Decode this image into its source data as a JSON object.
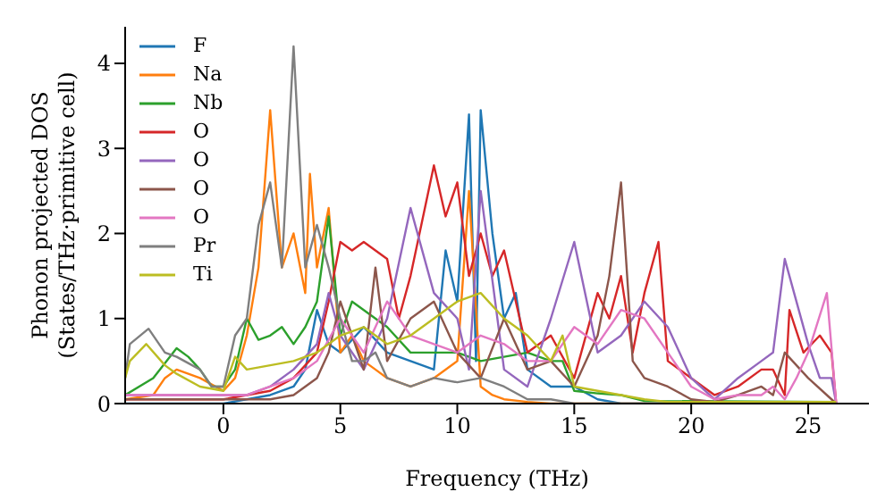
{
  "chart_data": {
    "type": "line",
    "xlabel": "Frequency (THz)",
    "ylabel": "Phonon projected DOS\n(States/THz·primitive cell)",
    "xlim": [
      -4.2,
      27.6
    ],
    "ylim": [
      0,
      4.43
    ],
    "xticks": [
      0,
      5,
      10,
      15,
      20,
      25
    ],
    "yticks": [
      0,
      1,
      2,
      3,
      4
    ],
    "grid": false,
    "legend": "top left",
    "marker": "none",
    "line_style": "solid",
    "series": [
      {
        "name": "F",
        "color": "#1f77b4",
        "x": [
          -4.2,
          0,
          2,
          3,
          3.5,
          4,
          4.5,
          5,
          6,
          7,
          8,
          9,
          9.5,
          10,
          10.5,
          10.8,
          11,
          11.5,
          12,
          12.5,
          13,
          14,
          15,
          16,
          17,
          26.2
        ],
        "values": [
          0,
          0,
          0.1,
          0.2,
          0.4,
          1.1,
          0.7,
          0.6,
          0.9,
          0.6,
          0.5,
          0.4,
          1.8,
          1.2,
          3.4,
          0.5,
          3.45,
          2.0,
          1.0,
          1.3,
          0.4,
          0.2,
          0.2,
          0.05,
          0,
          0
        ]
      },
      {
        "name": "Na",
        "color": "#ff7f0e",
        "x": [
          -4.2,
          -3,
          -2.5,
          -2,
          -1,
          0,
          0.5,
          1,
          1.5,
          2,
          2.5,
          3,
          3.5,
          3.7,
          4,
          4.5,
          5,
          5.5,
          6,
          6.5,
          7,
          8,
          9,
          10,
          10.5,
          11,
          11.5,
          12,
          13,
          14,
          26.2
        ],
        "values": [
          0.05,
          0.1,
          0.3,
          0.4,
          0.3,
          0.15,
          0.3,
          0.8,
          1.6,
          3.45,
          1.6,
          2.0,
          1.3,
          2.7,
          1.6,
          2.3,
          0.6,
          0.8,
          0.5,
          0.4,
          0.3,
          0.2,
          0.3,
          0.5,
          2.5,
          0.2,
          0.1,
          0.05,
          0.02,
          0,
          0
        ]
      },
      {
        "name": "Nb",
        "color": "#2ca02c",
        "x": [
          -4.2,
          -3,
          -2,
          -1.5,
          -1,
          -0.5,
          0,
          0.5,
          1,
          1.5,
          2,
          2.5,
          3,
          3.5,
          4,
          4.5,
          5,
          5.5,
          6,
          7,
          8,
          9,
          10,
          11,
          12,
          13,
          14,
          14.5,
          15,
          16,
          17,
          18,
          26.2
        ],
        "values": [
          0.1,
          0.3,
          0.65,
          0.55,
          0.4,
          0.2,
          0.2,
          0.4,
          1.0,
          0.75,
          0.8,
          0.9,
          0.7,
          0.9,
          1.2,
          2.2,
          0.8,
          1.2,
          1.1,
          0.9,
          0.6,
          0.6,
          0.6,
          0.5,
          0.55,
          0.6,
          0.5,
          0.5,
          0.15,
          0.12,
          0.1,
          0.03,
          0.02
        ]
      },
      {
        "name": "O",
        "color": "#d62728",
        "x": [
          -4.2,
          0,
          1,
          2,
          3,
          4,
          4.5,
          5,
          5.5,
          6,
          7,
          7.5,
          8,
          9,
          9.5,
          10,
          10.5,
          11,
          11.5,
          12,
          13,
          14,
          15,
          16,
          16.5,
          17,
          17.5,
          18,
          18.6,
          19,
          20,
          21,
          22,
          23,
          23.5,
          24,
          24.2,
          24.8,
          25.5,
          26,
          26.2
        ],
        "values": [
          0.05,
          0.05,
          0.1,
          0.15,
          0.3,
          0.6,
          1.2,
          1.9,
          1.8,
          1.9,
          1.7,
          1.0,
          1.5,
          2.8,
          2.2,
          2.6,
          1.5,
          2.0,
          1.5,
          1.8,
          0.6,
          0.8,
          0.3,
          1.3,
          1.0,
          1.5,
          0.6,
          1.3,
          1.9,
          0.5,
          0.3,
          0.1,
          0.2,
          0.4,
          0.4,
          0.1,
          1.1,
          0.6,
          0.8,
          0.6,
          0
        ]
      },
      {
        "name": "O",
        "color": "#9467bd",
        "x": [
          -4.2,
          1,
          2,
          3,
          4,
          4.5,
          5,
          6,
          7,
          8,
          9,
          10,
          10.5,
          11,
          12,
          13,
          14,
          15,
          16,
          17,
          18,
          19,
          20,
          21,
          22,
          23,
          23.5,
          24,
          25,
          25.5,
          26,
          26.2
        ],
        "values": [
          0.1,
          0.1,
          0.2,
          0.4,
          0.7,
          1.3,
          0.8,
          0.4,
          1.0,
          2.3,
          1.3,
          1.0,
          0.4,
          2.5,
          0.4,
          0.2,
          1.0,
          1.9,
          0.6,
          0.8,
          1.2,
          0.9,
          0.3,
          0.05,
          0.3,
          0.5,
          0.6,
          1.7,
          0.7,
          0.3,
          0.3,
          0
        ]
      },
      {
        "name": "O",
        "color": "#8c564b",
        "x": [
          -4.2,
          2,
          3,
          4,
          4.5,
          5,
          6,
          6.5,
          7,
          8,
          9,
          10,
          11,
          12,
          13,
          14,
          15,
          16,
          16.5,
          17,
          17.5,
          18,
          19,
          20,
          21,
          22,
          23,
          23.5,
          24,
          25,
          26,
          26.2
        ],
        "values": [
          0.05,
          0.05,
          0.1,
          0.3,
          0.6,
          1.2,
          0.4,
          1.6,
          0.5,
          1.0,
          1.2,
          0.6,
          0.3,
          1.0,
          0.4,
          0.5,
          0.2,
          0.8,
          1.5,
          2.6,
          0.5,
          0.3,
          0.2,
          0.05,
          0.02,
          0.1,
          0.2,
          0.1,
          0.6,
          0.3,
          0.05,
          0
        ]
      },
      {
        "name": "O",
        "color": "#e377c2",
        "x": [
          -4.2,
          1,
          2,
          3,
          4,
          5,
          6,
          7,
          8,
          9,
          10,
          11,
          12,
          13,
          14,
          15,
          16,
          17,
          18,
          19,
          20,
          21,
          22,
          23,
          23.5,
          24,
          24.5,
          25,
          25.8,
          26.2
        ],
        "values": [
          0.1,
          0.1,
          0.2,
          0.3,
          0.5,
          1.0,
          0.6,
          1.2,
          0.8,
          0.7,
          0.6,
          0.8,
          0.7,
          0.5,
          0.5,
          0.9,
          0.7,
          1.1,
          1.0,
          0.6,
          0.2,
          0.05,
          0.1,
          0.1,
          0.2,
          0.05,
          0.3,
          0.6,
          1.3,
          0
        ]
      },
      {
        "name": "Pr",
        "color": "#7f7f7f",
        "x": [
          -4.2,
          -4,
          -3.2,
          -2.5,
          -2,
          -1,
          -0.5,
          0,
          0.5,
          1,
          1.5,
          2,
          2.5,
          3,
          3.5,
          4,
          4.5,
          5,
          5.5,
          6,
          6.5,
          7,
          8,
          9,
          10,
          11,
          12,
          13,
          14,
          15,
          16,
          26.2
        ],
        "values": [
          0.3,
          0.7,
          0.88,
          0.6,
          0.55,
          0.4,
          0.2,
          0.2,
          0.8,
          1.0,
          2.1,
          2.6,
          1.6,
          4.2,
          1.6,
          2.1,
          1.6,
          1.0,
          0.5,
          0.5,
          0.6,
          0.3,
          0.2,
          0.3,
          0.25,
          0.3,
          0.2,
          0.05,
          0.05,
          0,
          0,
          0
        ]
      },
      {
        "name": "Ti",
        "color": "#bcbd22",
        "x": [
          -4.2,
          -4,
          -3.3,
          -2.5,
          -2,
          -1,
          0,
          0.5,
          1,
          2,
          3,
          4,
          5,
          6,
          7,
          8,
          9,
          10,
          11,
          12,
          13,
          14,
          14.5,
          15,
          16,
          17,
          18,
          19,
          26.2
        ],
        "values": [
          0.3,
          0.5,
          0.7,
          0.45,
          0.35,
          0.2,
          0.15,
          0.55,
          0.4,
          0.45,
          0.5,
          0.6,
          0.8,
          0.9,
          0.7,
          0.8,
          1.0,
          1.2,
          1.3,
          1.0,
          0.8,
          0.5,
          0.8,
          0.2,
          0.15,
          0.1,
          0.05,
          0.02,
          0.02
        ]
      }
    ]
  }
}
